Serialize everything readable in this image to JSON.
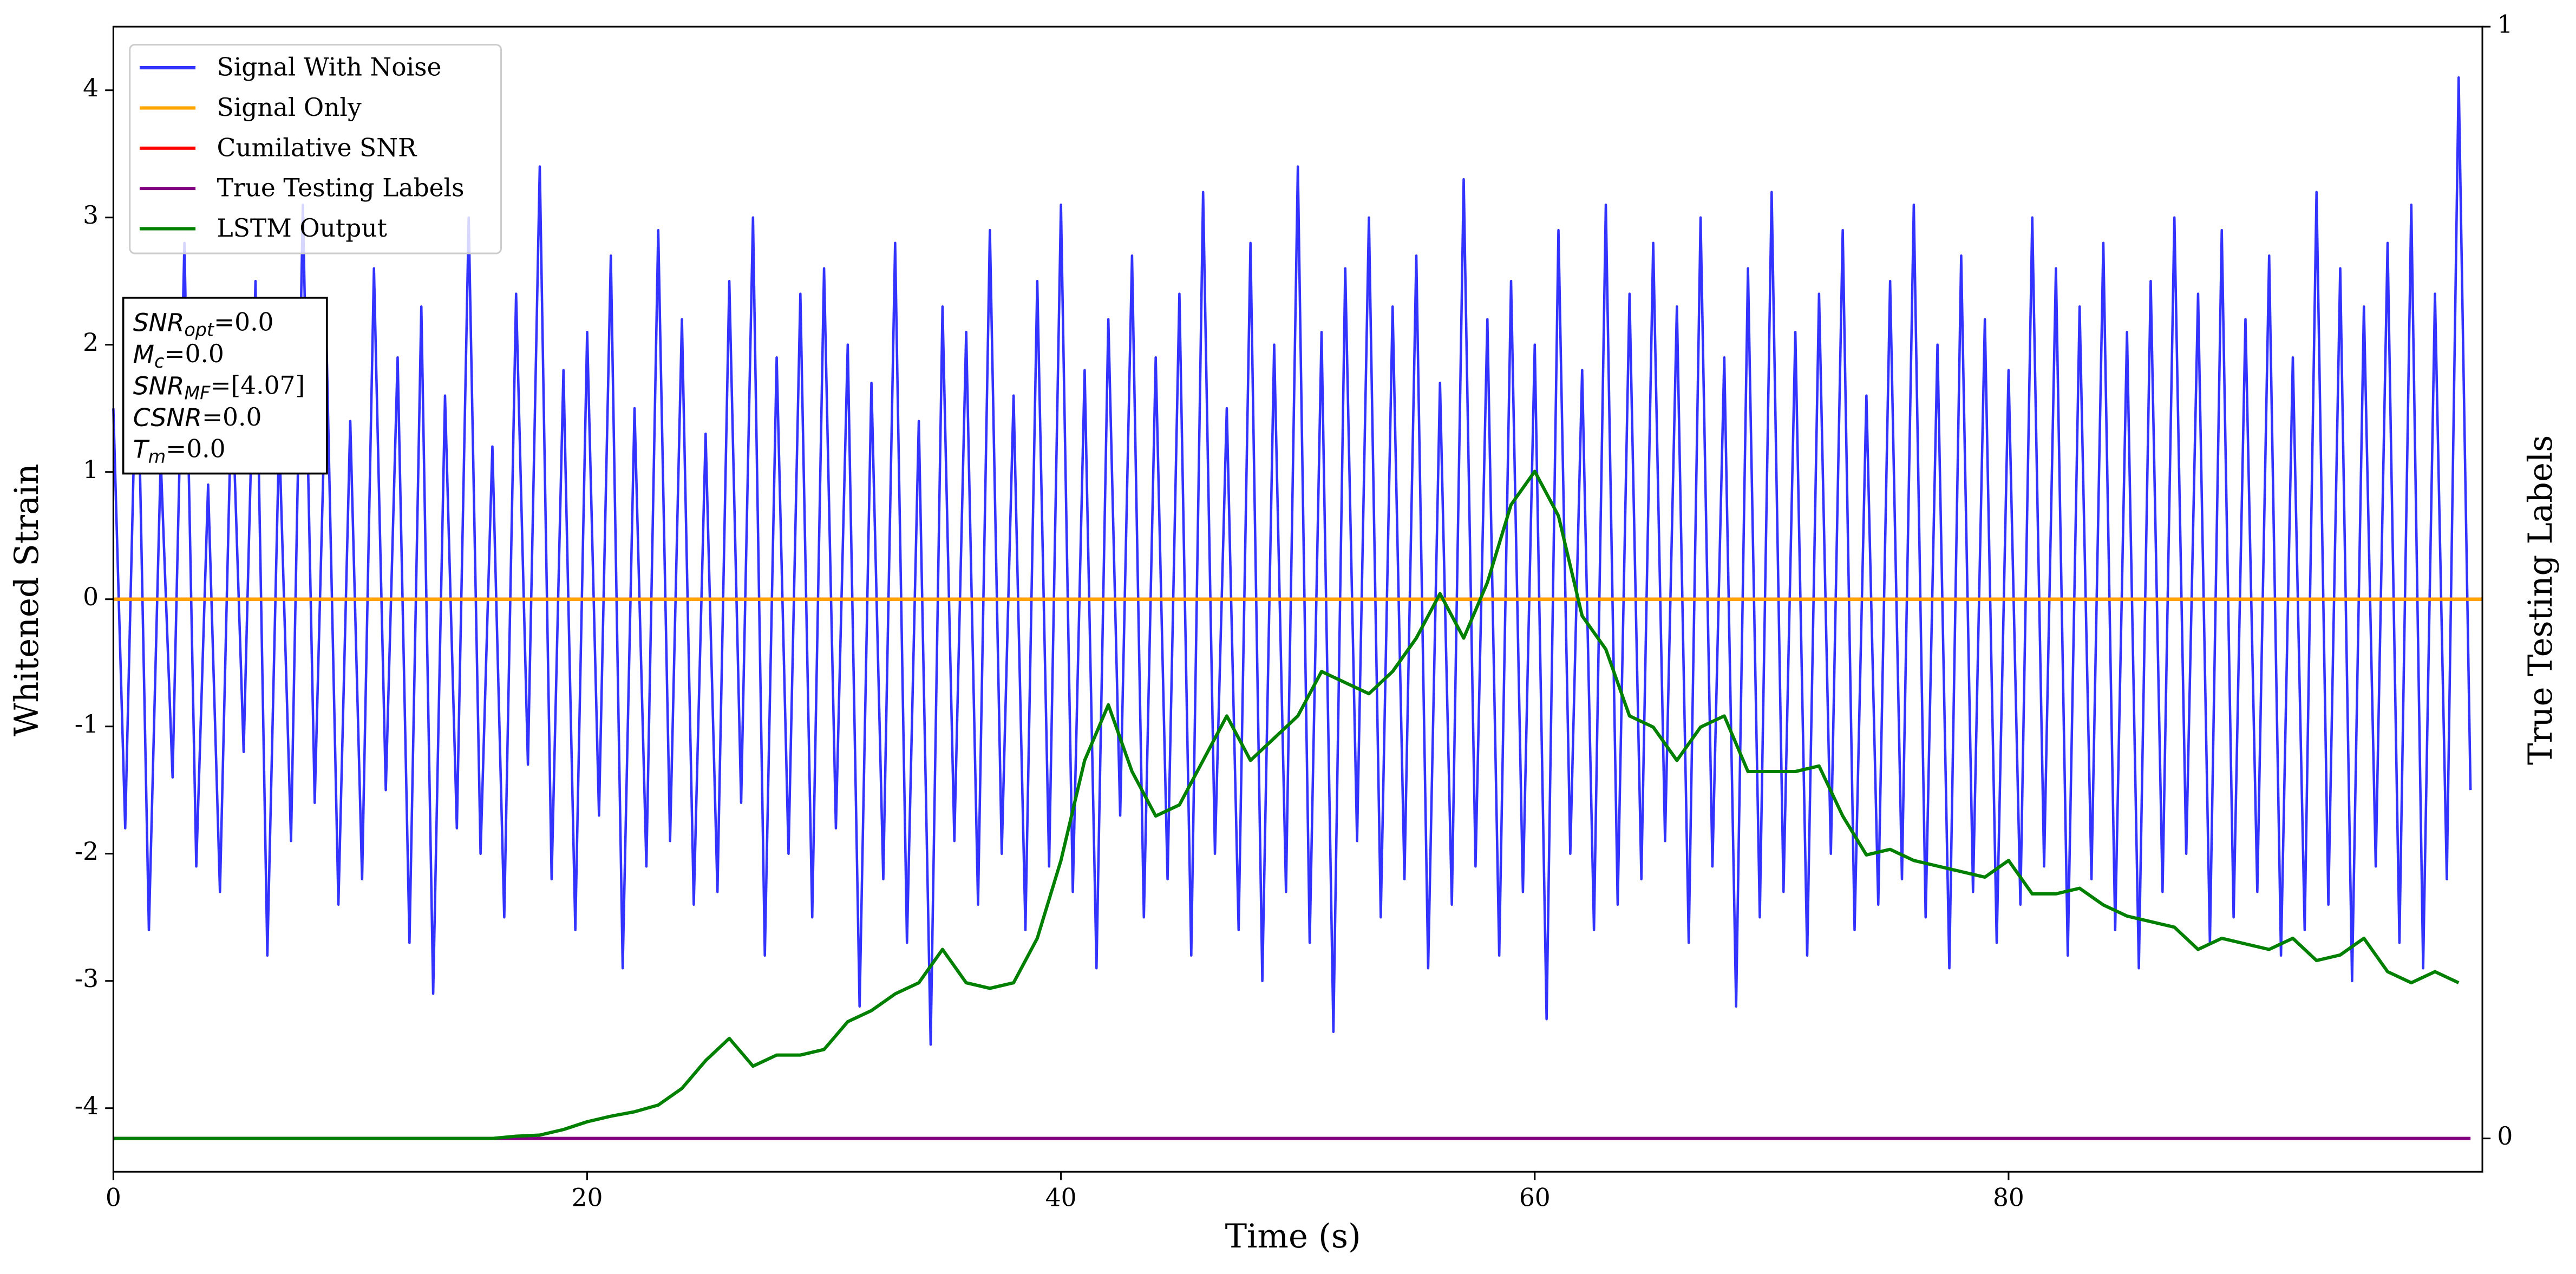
{
  "chart_data": {
    "type": "line",
    "xlabel": "Time (s)",
    "ylabel": "Whitened Strain",
    "y2label": "True Testing Labels",
    "xlim": [
      0,
      100
    ],
    "xticks": [
      0,
      20,
      40,
      60,
      80
    ],
    "ylim": [
      -4.5,
      4.5
    ],
    "yticks": [
      -4,
      -3,
      -2,
      -1,
      0,
      1,
      2,
      3,
      4
    ],
    "y2lim": [
      -0.03,
      1
    ],
    "y2ticks": [
      0,
      1
    ],
    "grid": false,
    "legend": "upper left",
    "annotations": [
      {
        "symbol": "SNR",
        "subscript": "opt",
        "text": "=0.0"
      },
      {
        "symbol": "M",
        "subscript": "c",
        "text": "=0.0"
      },
      {
        "symbol": "SNR",
        "subscript": "MF",
        "text": "=[4.07]"
      },
      {
        "symbol": "CSNR",
        "text": "=0.0"
      },
      {
        "symbol": "T",
        "subscript": "m",
        "text": "=0.0"
      }
    ],
    "series": [
      {
        "name": "Signal With Noise",
        "color": "#3333ff",
        "x": [
          0,
          0.5,
          1,
          1.5,
          2,
          2.5,
          3,
          3.5,
          4,
          4.5,
          5,
          5.5,
          6,
          6.5,
          7,
          7.5,
          8,
          8.5,
          9,
          9.5,
          10,
          10.5,
          11,
          11.5,
          12,
          12.5,
          13,
          13.5,
          14,
          14.5,
          15,
          15.5,
          16,
          16.5,
          17,
          17.5,
          18,
          18.5,
          19,
          19.5,
          20,
          20.5,
          21,
          21.5,
          22,
          22.5,
          23,
          23.5,
          24,
          24.5,
          25,
          25.5,
          26,
          26.5,
          27,
          27.5,
          28,
          28.5,
          29,
          29.5,
          30,
          30.5,
          31,
          31.5,
          32,
          32.5,
          33,
          33.5,
          34,
          34.5,
          35,
          35.5,
          36,
          36.5,
          37,
          37.5,
          38,
          38.5,
          39,
          39.5,
          40,
          40.5,
          41,
          41.5,
          42,
          42.5,
          43,
          43.5,
          44,
          44.5,
          45,
          45.5,
          46,
          46.5,
          47,
          47.5,
          48,
          48.5,
          49,
          49.5,
          50,
          50.5,
          51,
          51.5,
          52,
          52.5,
          53,
          53.5,
          54,
          54.5,
          55,
          55.5,
          56,
          56.5,
          57,
          57.5,
          58,
          58.5,
          59,
          59.5,
          60,
          60.5,
          61,
          61.5,
          62,
          62.5,
          63,
          63.5,
          64,
          64.5,
          65,
          65.5,
          66,
          66.5,
          67,
          67.5,
          68,
          68.5,
          69,
          69.5,
          70,
          70.5,
          71,
          71.5,
          72,
          72.5,
          73,
          73.5,
          74,
          74.5,
          75,
          75.5,
          76,
          76.5,
          77,
          77.5,
          78,
          78.5,
          79,
          79.5,
          80,
          80.5,
          81,
          81.5,
          82,
          82.5,
          83,
          83.5,
          84,
          84.5,
          85,
          85.5,
          86,
          86.5,
          87,
          87.5,
          88,
          88.5,
          89,
          89.5,
          90,
          90.5,
          91,
          91.5,
          92,
          92.5,
          93,
          93.5,
          94,
          94.5,
          95,
          95.5,
          96,
          96.5,
          97,
          97.5,
          98,
          98.5,
          99,
          99.5
        ],
        "values": [
          1.5,
          -1.8,
          2.2,
          -2.6,
          1.1,
          -1.4,
          2.8,
          -2.1,
          0.9,
          -2.3,
          1.7,
          -1.2,
          2.5,
          -2.8,
          1.3,
          -1.9,
          3.1,
          -1.6,
          2.0,
          -2.4,
          1.4,
          -2.2,
          2.6,
          -1.5,
          1.9,
          -2.7,
          2.3,
          -3.1,
          1.6,
          -1.8,
          3.0,
          -2.0,
          1.2,
          -2.5,
          2.4,
          -1.3,
          3.4,
          -2.2,
          1.8,
          -2.6,
          2.1,
          -1.7,
          2.7,
          -2.9,
          1.5,
          -2.1,
          2.9,
          -1.9,
          2.2,
          -2.4,
          1.3,
          -2.3,
          2.5,
          -1.6,
          3.0,
          -2.8,
          1.9,
          -2.0,
          2.4,
          -2.5,
          2.6,
          -1.8,
          2.0,
          -3.2,
          1.7,
          -2.2,
          2.8,
          -2.7,
          1.4,
          -3.5,
          2.3,
          -1.9,
          2.1,
          -2.4,
          2.9,
          -2.0,
          1.6,
          -2.6,
          2.5,
          -2.1,
          3.1,
          -2.3,
          1.8,
          -2.9,
          2.2,
          -1.7,
          2.7,
          -2.5,
          1.9,
          -2.2,
          2.4,
          -2.8,
          3.2,
          -2.0,
          1.5,
          -2.6,
          2.8,
          -3.0,
          2.0,
          -2.3,
          3.4,
          -2.7,
          2.1,
          -3.4,
          2.6,
          -1.9,
          3.0,
          -2.5,
          2.3,
          -2.2,
          2.7,
          -2.9,
          1.7,
          -2.4,
          3.3,
          -2.1,
          2.2,
          -2.8,
          2.5,
          -2.3,
          2.0,
          -3.3,
          2.9,
          -2.0,
          1.8,
          -2.6,
          3.1,
          -2.4,
          2.4,
          -2.2,
          2.8,
          -1.9,
          2.3,
          -2.7,
          3.0,
          -2.1,
          1.9,
          -3.2,
          2.6,
          -2.5,
          3.2,
          -2.3,
          2.1,
          -2.8,
          2.4,
          -2.0,
          2.9,
          -2.6,
          1.6,
          -2.4,
          2.5,
          -2.2,
          3.1,
          -2.5,
          2.0,
          -2.9,
          2.7,
          -2.3,
          2.2,
          -2.7,
          1.8,
          -2.4,
          3.0,
          -2.1,
          2.6,
          -2.8,
          2.3,
          -2.2,
          2.8,
          -2.6,
          2.1,
          -2.9,
          2.5,
          -2.3,
          3.0,
          -2.0,
          2.4,
          -2.7,
          2.9,
          -2.5,
          2.2,
          -2.3,
          2.7,
          -2.8,
          1.9,
          -2.6,
          3.2,
          -2.4,
          2.6,
          -3.0,
          2.3,
          -2.1,
          2.8,
          -2.7,
          3.1,
          -2.9,
          2.4,
          -2.2,
          4.1,
          -1.5
        ]
      },
      {
        "name": "Signal Only",
        "color": "orange",
        "x": [
          0,
          100
        ],
        "values": [
          0,
          0
        ]
      },
      {
        "name": "Cumilative SNR",
        "color": "red",
        "x": [
          0,
          100
        ],
        "values": [
          0,
          0
        ]
      },
      {
        "name": "True Testing Labels",
        "color": "purple",
        "axis": "y2",
        "x": [
          0,
          99.5
        ],
        "values": [
          0,
          0
        ]
      },
      {
        "name": "LSTM Output",
        "color": "green",
        "axis": "y2",
        "x": [
          0,
          1,
          2,
          3,
          4,
          5,
          6,
          7,
          8,
          9,
          10,
          11,
          12,
          13,
          14,
          15,
          16,
          17,
          18,
          19,
          20,
          21,
          22,
          23,
          24,
          25,
          26,
          27,
          28,
          29,
          30,
          31,
          32,
          33,
          34,
          35,
          36,
          37,
          38,
          39,
          40,
          41,
          42,
          43,
          44,
          45,
          46,
          47,
          48,
          49,
          50,
          51,
          52,
          53,
          54,
          55,
          56,
          57,
          58,
          59,
          60,
          61,
          62,
          63,
          64,
          65,
          66,
          67,
          68,
          69,
          70,
          71,
          72,
          73,
          74,
          75,
          76,
          77,
          78,
          79,
          80,
          81,
          82,
          83,
          84,
          85,
          86,
          87,
          88,
          89,
          90,
          91,
          92,
          93,
          94,
          95,
          96,
          97,
          98,
          99
        ],
        "values": [
          0,
          0,
          0,
          0,
          0,
          0,
          0,
          0,
          0,
          0,
          0,
          0,
          0,
          0,
          0,
          0,
          0,
          0.002,
          0.003,
          0.008,
          0.015,
          0.02,
          0.024,
          0.03,
          0.045,
          0.07,
          0.09,
          0.065,
          0.075,
          0.075,
          0.08,
          0.105,
          0.115,
          0.13,
          0.14,
          0.17,
          0.14,
          0.135,
          0.14,
          0.18,
          0.25,
          0.34,
          0.39,
          0.33,
          0.29,
          0.3,
          0.34,
          0.38,
          0.34,
          0.36,
          0.38,
          0.42,
          0.41,
          0.4,
          0.42,
          0.45,
          0.49,
          0.45,
          0.5,
          0.57,
          0.6,
          0.56,
          0.47,
          0.44,
          0.38,
          0.37,
          0.34,
          0.37,
          0.38,
          0.33,
          0.33,
          0.33,
          0.335,
          0.29,
          0.255,
          0.26,
          0.25,
          0.245,
          0.24,
          0.235,
          0.25,
          0.22,
          0.22,
          0.225,
          0.21,
          0.2,
          0.195,
          0.19,
          0.17,
          0.18,
          0.175,
          0.17,
          0.18,
          0.16,
          0.165,
          0.18,
          0.15,
          0.14,
          0.15,
          0.14
        ]
      }
    ]
  }
}
